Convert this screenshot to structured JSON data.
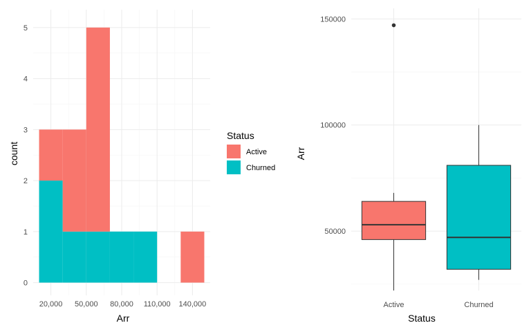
{
  "colors": {
    "active": "#F8766D",
    "churned": "#00BFC4",
    "outline": "#333333"
  },
  "legend": {
    "title": "Status",
    "items": [
      {
        "label": "Active",
        "color": "#F8766D"
      },
      {
        "label": "Churned",
        "color": "#00BFC4"
      }
    ]
  },
  "chart_data": [
    {
      "type": "bar",
      "subtype": "stacked-histogram",
      "xlabel": "Arr",
      "ylabel": "count",
      "xlim": [
        5000,
        155000
      ],
      "ylim": [
        -0.25,
        5.35
      ],
      "x_ticks": [
        {
          "value": 20000,
          "label": "20,000"
        },
        {
          "value": 50000,
          "label": "50,000"
        },
        {
          "value": 80000,
          "label": "80,000"
        },
        {
          "value": 110000,
          "label": "110,000"
        },
        {
          "value": 140000,
          "label": "140,000"
        }
      ],
      "y_ticks": [
        0,
        1,
        2,
        3,
        4,
        5
      ],
      "bins": [
        {
          "x0": 10000,
          "x1": 30000,
          "churned": 2,
          "active": 1
        },
        {
          "x0": 30000,
          "x1": 50000,
          "churned": 1,
          "active": 2
        },
        {
          "x0": 50000,
          "x1": 70000,
          "churned": 1,
          "active": 4
        },
        {
          "x0": 70000,
          "x1": 90000,
          "churned": 1,
          "active": 0
        },
        {
          "x0": 90000,
          "x1": 110000,
          "churned": 1,
          "active": 0
        },
        {
          "x0": 110000,
          "x1": 130000,
          "churned": 0,
          "active": 0
        },
        {
          "x0": 130000,
          "x1": 150000,
          "churned": 0,
          "active": 1
        }
      ],
      "grid": true,
      "legend": "right"
    },
    {
      "type": "box",
      "xlabel": "Status",
      "ylabel": "Arr",
      "ylim": [
        22000,
        155000
      ],
      "y_ticks": [
        {
          "value": 50000,
          "label": "50000"
        },
        {
          "value": 100000,
          "label": "100000"
        },
        {
          "value": 150000,
          "label": "150000"
        }
      ],
      "categories": [
        "Active",
        "Churned"
      ],
      "boxes": [
        {
          "category": "Active",
          "whisker_low": 22000,
          "q1": 46000,
          "median": 53000,
          "q3": 64000,
          "whisker_high": 68000,
          "outliers": [
            147000
          ],
          "color": "#F8766D"
        },
        {
          "category": "Churned",
          "whisker_low": 27000,
          "q1": 32000,
          "median": 47000,
          "q3": 81000,
          "whisker_high": 100000,
          "outliers": [],
          "color": "#00BFC4"
        }
      ],
      "grid": true
    }
  ]
}
